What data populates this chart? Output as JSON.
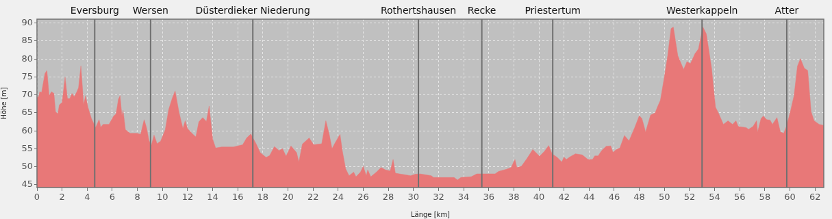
{
  "chart_data": {
    "type": "area",
    "xlabel": "Länge [km]",
    "ylabel": "Höhe [m]",
    "color": "#e87878",
    "x": [
      0,
      0.13,
      0.22,
      0.37,
      0.5,
      0.64,
      0.79,
      0.97,
      1.16,
      1.35,
      1.48,
      1.66,
      1.78,
      2,
      2.24,
      2.43,
      2.62,
      2.79,
      2.97,
      3.18,
      3.31,
      3.5,
      3.72,
      3.87,
      4.06,
      4.34,
      4.67,
      4.95,
      5.08,
      5.27,
      5.74,
      6.11,
      6.3,
      6.49,
      6.62,
      6.77,
      6.86,
      7.05,
      7.42,
      7.98,
      8.26,
      8.54,
      8.73,
      8.92,
      9.1,
      9.33,
      9.57,
      9.85,
      10.22,
      10.5,
      10.78,
      11.01,
      11.31,
      11.63,
      11.81,
      12,
      12.43,
      12.66,
      12.9,
      13.21,
      13.5,
      13.72,
      14,
      14.24,
      14.71,
      15.64,
      16.39,
      16.71,
      17.04,
      17.46,
      17.79,
      18.26,
      18.54,
      18.92,
      19.29,
      19.57,
      19.85,
      20.24,
      20.69,
      20.87,
      21.15,
      21.69,
      22.05,
      22.69,
      23.02,
      23.29,
      23.51,
      23.78,
      24.15,
      24.33,
      24.6,
      24.87,
      25.24,
      25.42,
      25.78,
      26,
      26.24,
      26.36,
      26.6,
      27.05,
      27.42,
      27.78,
      28.15,
      28.38,
      28.56,
      29.05,
      29.78,
      30.15,
      30.51,
      31.42,
      31.6,
      33.24,
      33.51,
      33.78,
      34.6,
      35.05,
      36.51,
      36.78,
      37.42,
      37.78,
      38.09,
      38.24,
      38.6,
      39.05,
      39.51,
      40.05,
      40.42,
      40.78,
      41.05,
      41.46,
      41.82,
      42,
      42.18,
      42.45,
      42.91,
      43.45,
      43.91,
      44.27,
      44.45,
      44.72,
      45,
      45.36,
      45.72,
      45.9,
      46.17,
      46.45,
      46.81,
      47.18,
      47.63,
      48,
      48.21,
      48.5,
      48.9,
      49.26,
      49.44,
      49.68,
      49.99,
      50.26,
      50.53,
      50.71,
      51.07,
      51.53,
      51.8,
      52.07,
      52.44,
      52.71,
      53.07,
      53.34,
      53.76,
      54.07,
      54.34,
      54.7,
      55.07,
      55.43,
      55.7,
      55.88,
      56.52,
      56.7,
      57.06,
      57.34,
      57.43,
      57.7,
      57.88,
      58.15,
      58.42,
      58.61,
      58.97,
      59.24,
      59.51,
      59.75,
      60.06,
      60.33,
      60.6,
      60.84,
      61.15,
      61.42,
      61.69,
      61.93,
      62.33,
      62.7
    ],
    "values": [
      69.2,
      69.5,
      70.9,
      70.7,
      73.3,
      76,
      76.8,
      69.8,
      70.9,
      70.4,
      65.3,
      64.7,
      67.2,
      67.9,
      74.9,
      69,
      69,
      70.4,
      69.5,
      70.9,
      72,
      78.1,
      67.2,
      69.8,
      66.6,
      63.4,
      60.9,
      63.1,
      61,
      61.8,
      61.8,
      64.1,
      64.7,
      68.8,
      69.8,
      64.1,
      65.7,
      60.3,
      59.3,
      59.3,
      59,
      63.1,
      60.9,
      57.4,
      55.8,
      58.8,
      56.4,
      57.1,
      60.3,
      66,
      69.1,
      71.1,
      65.3,
      60.6,
      62.8,
      60.6,
      59,
      58.3,
      62.5,
      63.7,
      62.6,
      66.9,
      57.7,
      55.2,
      55.5,
      55.5,
      56.1,
      58,
      59.1,
      56.4,
      53.9,
      52.6,
      53.1,
      55.6,
      54.5,
      55,
      52.9,
      55.8,
      53.9,
      51.3,
      56.3,
      58,
      56.1,
      56.4,
      62.8,
      59,
      55,
      56.8,
      59,
      54.5,
      49.4,
      47.5,
      48.5,
      47.2,
      48.5,
      50.1,
      47.5,
      49.1,
      47.2,
      48.5,
      49.8,
      49.1,
      48.8,
      52,
      48.2,
      47.9,
      47.5,
      47.9,
      48,
      47.5,
      47,
      47,
      46.3,
      47,
      47.2,
      48,
      48,
      48.7,
      49.3,
      49.8,
      52,
      49.8,
      50.1,
      52.3,
      54.8,
      52.9,
      54.2,
      55.9,
      53.6,
      52.6,
      51.3,
      52.7,
      52,
      52.7,
      53.6,
      53.3,
      52,
      52,
      53,
      53,
      54.5,
      55.7,
      55.8,
      54,
      54.8,
      55.2,
      58.7,
      57.2,
      60.9,
      64.2,
      63.4,
      59.7,
      64.4,
      65,
      66.6,
      68.5,
      74.9,
      80.9,
      88.5,
      88.9,
      80.9,
      77.1,
      79.3,
      78.7,
      81.5,
      82.8,
      88.9,
      87,
      77.4,
      66.6,
      64.7,
      61.8,
      62.8,
      61.8,
      62.8,
      61.2,
      60.9,
      60.4,
      61.2,
      62.8,
      59.7,
      63.4,
      64.1,
      63.1,
      63,
      61.8,
      63.7,
      59.7,
      59.3,
      61.5,
      65.7,
      69.8,
      78,
      80.1,
      77.4,
      76.8,
      65.3,
      62.8,
      61.8,
      61.5
    ],
    "xlim": [
      0,
      62.7
    ],
    "ylim": [
      44.2,
      91.1
    ],
    "xticks": [
      0,
      2,
      4,
      6,
      8,
      10,
      12,
      14,
      16,
      18,
      20,
      22,
      24,
      26,
      28,
      30,
      32,
      34,
      36,
      38,
      40,
      42,
      44,
      46,
      48,
      50,
      52,
      54,
      56,
      58,
      60,
      62
    ],
    "yticks": [
      45,
      50,
      55,
      60,
      65,
      70,
      75,
      80,
      85,
      90
    ],
    "grid": true,
    "ref_lines": [
      {
        "axis": "x",
        "value": 4.6,
        "label": "Eversburg",
        "color": "#707070"
      },
      {
        "axis": "x",
        "value": 9.05,
        "label": "Wersen",
        "color": "#707070"
      },
      {
        "axis": "x",
        "value": 17.2,
        "label": "Düsterdieker Niederung",
        "color": "#707070"
      },
      {
        "axis": "x",
        "value": 30.4,
        "label": "Rothertshausen",
        "color": "#707070"
      },
      {
        "axis": "x",
        "value": 35.45,
        "label": "Recke",
        "color": "#707070"
      },
      {
        "axis": "x",
        "value": 41.1,
        "label": "Priestertum",
        "color": "#707070"
      },
      {
        "axis": "x",
        "value": 53.0,
        "label": "Westerkappeln",
        "color": "#707070"
      },
      {
        "axis": "x",
        "value": 59.75,
        "label": "Atter",
        "color": "#707070"
      }
    ]
  }
}
